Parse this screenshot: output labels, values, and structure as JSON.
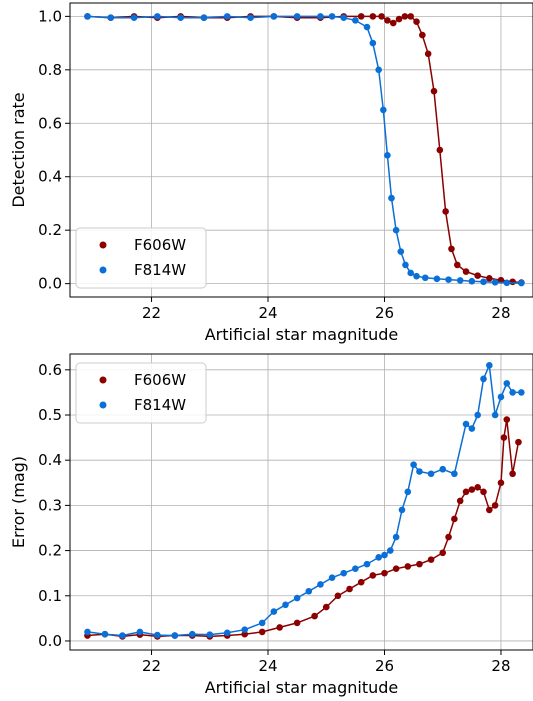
{
  "colors": {
    "F606W": "#8b0000",
    "F814W": "#0a6fd6"
  },
  "chart_data": [
    {
      "type": "line",
      "xlabel": "Artificial star magnitude",
      "ylabel": "Detection rate",
      "xlim": [
        20.6,
        28.55
      ],
      "ylim": [
        -0.05,
        1.05
      ],
      "xticks": [
        22,
        24,
        26,
        28
      ],
      "yticks": [
        0.0,
        0.2,
        0.4,
        0.6,
        0.8,
        1.0
      ],
      "xtick_labels": [
        "22",
        "24",
        "26",
        "28"
      ],
      "ytick_labels": [
        "0.0",
        "0.2",
        "0.4",
        "0.6",
        "0.8",
        "1.0"
      ],
      "grid": true,
      "legend": "lower-left",
      "series": [
        {
          "name": "F606W",
          "color": "#8b0000",
          "x": [
            20.9,
            21.3,
            21.7,
            22.1,
            22.5,
            22.9,
            23.3,
            23.7,
            24.1,
            24.5,
            24.9,
            25.3,
            25.6,
            25.8,
            25.95,
            26.05,
            26.15,
            26.25,
            26.35,
            26.45,
            26.55,
            26.65,
            26.75,
            26.85,
            26.95,
            27.05,
            27.15,
            27.25,
            27.4,
            27.6,
            27.8,
            28.0,
            28.2,
            28.35
          ],
          "y": [
            1.0,
            0.995,
            1.0,
            0.995,
            1.0,
            0.995,
            0.995,
            1.0,
            1.0,
            0.995,
            0.995,
            1.0,
            1.0,
            1.0,
            1.0,
            0.985,
            0.975,
            0.99,
            1.0,
            1.0,
            0.98,
            0.93,
            0.86,
            0.72,
            0.5,
            0.27,
            0.13,
            0.07,
            0.045,
            0.03,
            0.02,
            0.013,
            0.007,
            0.004
          ]
        },
        {
          "name": "F814W",
          "color": "#0a6fd6",
          "x": [
            20.9,
            21.3,
            21.7,
            22.1,
            22.5,
            22.9,
            23.3,
            23.7,
            24.1,
            24.5,
            24.9,
            25.1,
            25.3,
            25.5,
            25.7,
            25.8,
            25.9,
            25.98,
            26.05,
            26.12,
            26.2,
            26.28,
            26.36,
            26.45,
            26.55,
            26.7,
            26.9,
            27.1,
            27.3,
            27.5,
            27.7,
            27.9,
            28.1,
            28.35
          ],
          "y": [
            1.0,
            0.995,
            0.995,
            1.0,
            0.995,
            0.995,
            1.0,
            0.995,
            1.0,
            1.0,
            1.0,
            1.0,
            0.995,
            0.985,
            0.96,
            0.9,
            0.8,
            0.65,
            0.48,
            0.32,
            0.2,
            0.12,
            0.07,
            0.04,
            0.028,
            0.022,
            0.018,
            0.015,
            0.012,
            0.009,
            0.007,
            0.005,
            0.003,
            0.002
          ]
        }
      ]
    },
    {
      "type": "line",
      "xlabel": "Artificial star magnitude",
      "ylabel": "Error (mag)",
      "xlim": [
        20.6,
        28.55
      ],
      "ylim": [
        -0.02,
        0.635
      ],
      "xticks": [
        22,
        24,
        26,
        28
      ],
      "yticks": [
        0.0,
        0.1,
        0.2,
        0.3,
        0.4,
        0.5,
        0.6
      ],
      "xtick_labels": [
        "22",
        "24",
        "26",
        "28"
      ],
      "ytick_labels": [
        "0.0",
        "0.1",
        "0.2",
        "0.3",
        "0.4",
        "0.5",
        "0.6"
      ],
      "grid": true,
      "legend": "upper-left",
      "series": [
        {
          "name": "F606W",
          "color": "#8b0000",
          "x": [
            20.9,
            21.2,
            21.5,
            21.8,
            22.1,
            22.4,
            22.7,
            23.0,
            23.3,
            23.6,
            23.9,
            24.2,
            24.5,
            24.8,
            25.0,
            25.2,
            25.4,
            25.6,
            25.8,
            26.0,
            26.2,
            26.4,
            26.6,
            26.8,
            27.0,
            27.1,
            27.2,
            27.3,
            27.4,
            27.5,
            27.6,
            27.7,
            27.8,
            27.9,
            28.0,
            28.05,
            28.1,
            28.2,
            28.3
          ],
          "y": [
            0.012,
            0.015,
            0.01,
            0.014,
            0.01,
            0.012,
            0.012,
            0.01,
            0.012,
            0.015,
            0.02,
            0.03,
            0.04,
            0.055,
            0.075,
            0.1,
            0.115,
            0.13,
            0.145,
            0.15,
            0.16,
            0.165,
            0.17,
            0.18,
            0.195,
            0.23,
            0.27,
            0.31,
            0.33,
            0.335,
            0.34,
            0.33,
            0.29,
            0.3,
            0.35,
            0.45,
            0.49,
            0.37,
            0.44
          ]
        },
        {
          "name": "F814W",
          "color": "#0a6fd6",
          "x": [
            20.9,
            21.2,
            21.5,
            21.8,
            22.1,
            22.4,
            22.7,
            23.0,
            23.3,
            23.6,
            23.9,
            24.1,
            24.3,
            24.5,
            24.7,
            24.9,
            25.1,
            25.3,
            25.5,
            25.7,
            25.9,
            26.0,
            26.1,
            26.2,
            26.3,
            26.4,
            26.5,
            26.6,
            26.8,
            27.0,
            27.2,
            27.4,
            27.5,
            27.6,
            27.7,
            27.8,
            27.9,
            28.0,
            28.1,
            28.2,
            28.35
          ],
          "y": [
            0.02,
            0.015,
            0.012,
            0.02,
            0.013,
            0.012,
            0.015,
            0.014,
            0.018,
            0.025,
            0.04,
            0.065,
            0.08,
            0.095,
            0.11,
            0.125,
            0.14,
            0.15,
            0.16,
            0.17,
            0.185,
            0.19,
            0.2,
            0.23,
            0.29,
            0.33,
            0.39,
            0.375,
            0.37,
            0.38,
            0.37,
            0.48,
            0.47,
            0.5,
            0.58,
            0.61,
            0.5,
            0.54,
            0.57,
            0.55,
            0.55
          ]
        }
      ]
    }
  ]
}
